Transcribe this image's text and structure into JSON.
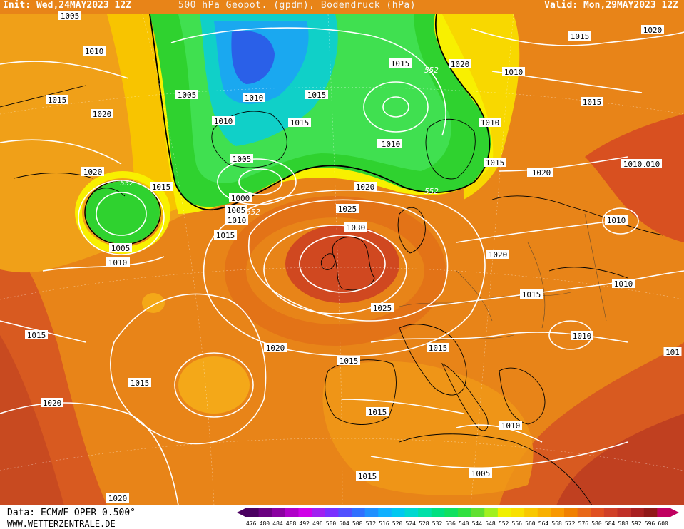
{
  "header": {
    "init": "Init: Wed,24MAY2023 12Z",
    "title": "500 hPa Geopot. (gpdm), Bodendruck (hPa)",
    "valid": "Valid: Mon,29MAY2023 12Z"
  },
  "footer": {
    "source": "Data: ECMWF OPER 0.500°",
    "site": "WWW.WETTERZENTRALE.DE"
  },
  "legend": {
    "values": [
      "476",
      "480",
      "484",
      "488",
      "492",
      "496",
      "500",
      "504",
      "508",
      "512",
      "516",
      "520",
      "524",
      "528",
      "532",
      "536",
      "540",
      "544",
      "548",
      "552",
      "556",
      "560",
      "564",
      "568",
      "572",
      "576",
      "580",
      "584",
      "588",
      "592",
      "596",
      "600"
    ],
    "colors": [
      "#4a0060",
      "#6a0080",
      "#8a00a0",
      "#b000c8",
      "#d000e8",
      "#a020f0",
      "#7a30ff",
      "#5050ff",
      "#3070ff",
      "#2090ff",
      "#10b0ff",
      "#00c8f0",
      "#00d8d0",
      "#00e0a8",
      "#00e080",
      "#10e060",
      "#30e040",
      "#60e030",
      "#a0f020",
      "#f0f000",
      "#f8e000",
      "#f8c800",
      "#f8b000",
      "#f89800",
      "#f08000",
      "#e86818",
      "#e05020",
      "#d04028",
      "#c03028",
      "#a82020",
      "#901818",
      "#c00060"
    ]
  },
  "map": {
    "colors": {
      "bg": "#e88418",
      "green": "#2fd22f",
      "green_light": "#30e050",
      "cyan": "#10c8d8",
      "blue_mid": "#2090f0",
      "blue_deep": "#2858e8",
      "yellow": "#f8f000",
      "yellow_orange": "#f8c000",
      "orange_light": "#f4a010",
      "orange_mid": "#f08c10",
      "red_orange": "#e06018",
      "red": "#d04820",
      "deep_red": "#b83018"
    },
    "isobar_labels": [
      "1005",
      "1010",
      "1015",
      "1020",
      "1010",
      "1005",
      "1010",
      "1015",
      "1015",
      "1010",
      "1020",
      "1015",
      "1010",
      "1020",
      "1015",
      "1010",
      "1015",
      "1020",
      "1010",
      "1005",
      "552",
      "1020",
      "552",
      "1015",
      "1000",
      "1005",
      "1010",
      "1015",
      "1020",
      "1025",
      "552",
      "552",
      "1015",
      "1010",
      "1010",
      "1015",
      "1005",
      "1010",
      "1030",
      "1025",
      "1020",
      "1020",
      "1010",
      "1015",
      "1015",
      "1015",
      "1015",
      "1020",
      "1010",
      "1015",
      "1010",
      "1010",
      "1015",
      "1005",
      "1020",
      "1015",
      "1020",
      "101",
      "1010"
    ]
  }
}
